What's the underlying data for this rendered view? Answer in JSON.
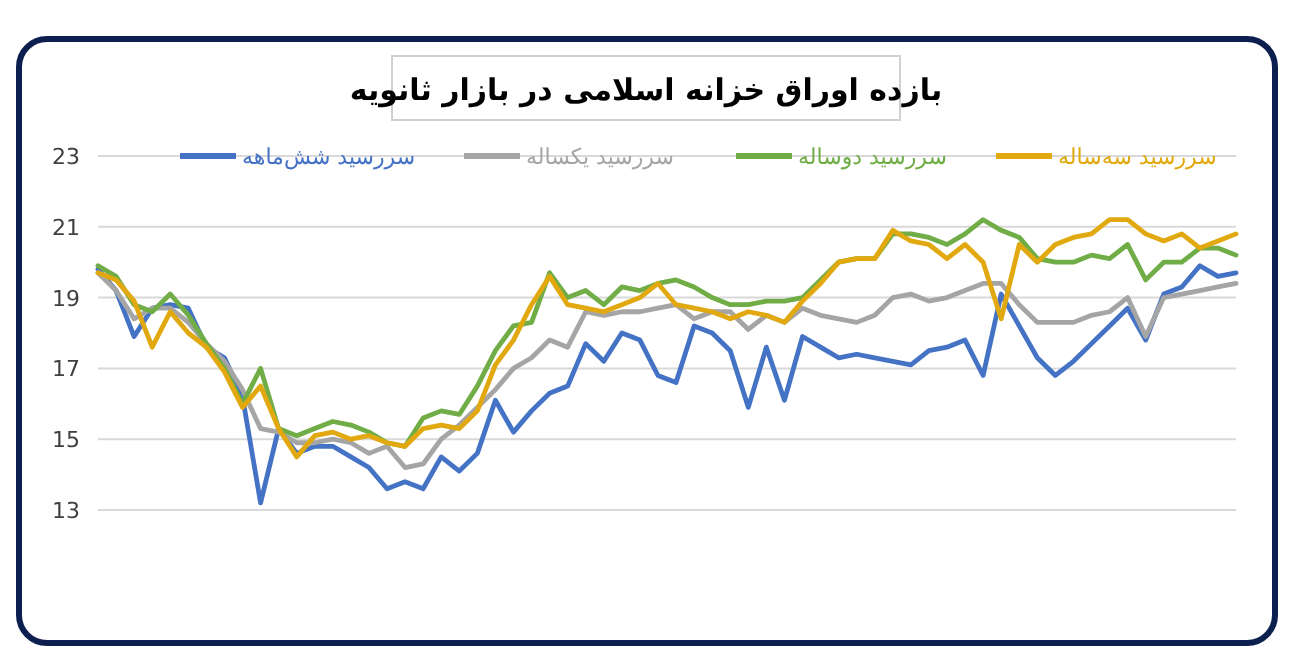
{
  "chart_data": {
    "type": "line",
    "title": "بازده اوراق خزانه اسلامی در بازار ثانویه",
    "categories": [
      null,
      null,
      null,
      null,
      null,
      null,
      null,
      null,
      null,
      null,
      null,
      null,
      null,
      null,
      null,
      null,
      null,
      null,
      null,
      null,
      null,
      null,
      null,
      null,
      null,
      null,
      null,
      null,
      null,
      null,
      null,
      null,
      null,
      null,
      null,
      null,
      null,
      null,
      null,
      null,
      null,
      null,
      null,
      null,
      null,
      null,
      null,
      null,
      null,
      null,
      null,
      null,
      null,
      null,
      null,
      null,
      null,
      null,
      null,
      null,
      null,
      null,
      null,
      null
    ],
    "series": [
      {
        "name": "سررسید شش‌ماهه",
        "color": "#4472c4",
        "values": [
          19.8,
          19.2,
          17.9,
          18.7,
          18.8,
          18.7,
          17.6,
          17.3,
          16.2,
          13.2,
          15.3,
          14.6,
          14.8,
          14.8,
          14.5,
          14.2,
          13.6,
          13.8,
          13.6,
          14.5,
          14.1,
          14.6,
          16.1,
          15.2,
          15.8,
          16.3,
          16.5,
          17.7,
          17.2,
          18.0,
          17.8,
          16.8,
          16.6,
          18.2,
          18.0,
          17.5,
          15.9,
          17.6,
          16.1,
          17.9,
          17.6,
          17.3,
          17.4,
          17.3,
          17.2,
          17.1,
          17.5,
          17.6,
          17.8,
          16.8,
          19.1,
          18.2,
          17.3,
          16.8,
          17.2,
          17.7,
          18.2,
          18.7,
          17.8,
          19.1,
          19.3,
          19.9,
          19.6,
          19.7
        ]
      },
      {
        "name": "سررسید یکساله",
        "color": "#a5a5a5",
        "values": [
          19.7,
          19.2,
          18.4,
          18.7,
          18.7,
          18.3,
          17.7,
          17.2,
          16.4,
          15.3,
          15.2,
          14.9,
          14.9,
          15.0,
          14.9,
          14.6,
          14.8,
          14.2,
          14.3,
          15.0,
          15.4,
          15.9,
          16.4,
          17.0,
          17.3,
          17.8,
          17.6,
          18.6,
          18.5,
          18.6,
          18.6,
          18.7,
          18.8,
          18.4,
          18.6,
          18.6,
          18.1,
          18.5,
          18.3,
          18.7,
          18.5,
          18.4,
          18.3,
          18.5,
          19.0,
          19.1,
          18.9,
          19.0,
          19.2,
          19.4,
          19.4,
          18.8,
          18.3,
          18.3,
          18.3,
          18.5,
          18.6,
          19.0,
          17.9,
          19.0,
          19.1,
          19.2,
          19.3,
          19.4
        ]
      },
      {
        "name": "سررسید دوساله",
        "color": "#70ad47",
        "values": [
          19.9,
          19.6,
          18.8,
          18.6,
          19.1,
          18.5,
          17.7,
          17.0,
          16.0,
          17.0,
          15.3,
          15.1,
          15.3,
          15.5,
          15.4,
          15.2,
          14.9,
          14.8,
          15.6,
          15.8,
          15.7,
          16.5,
          17.5,
          18.2,
          18.3,
          19.7,
          19.0,
          19.2,
          18.8,
          19.3,
          19.2,
          19.4,
          19.5,
          19.3,
          19.0,
          18.8,
          18.8,
          18.9,
          18.9,
          19.0,
          19.5,
          20.0,
          20.1,
          20.1,
          20.8,
          20.8,
          20.7,
          20.5,
          20.8,
          21.2,
          20.9,
          20.7,
          20.1,
          20.0,
          20.0,
          20.2,
          20.1,
          20.5,
          19.5,
          20.0,
          20.0,
          20.4,
          20.4,
          20.2
        ]
      },
      {
        "name": "سررسید سه‌ساله",
        "color": "#e1a90f",
        "values": [
          19.7,
          19.5,
          18.9,
          17.6,
          18.6,
          18.0,
          17.6,
          16.9,
          15.9,
          16.5,
          15.3,
          14.5,
          15.1,
          15.2,
          15.0,
          15.1,
          14.9,
          14.8,
          15.3,
          15.4,
          15.3,
          15.8,
          17.1,
          17.8,
          18.8,
          19.6,
          18.8,
          18.7,
          18.6,
          18.8,
          19.0,
          19.4,
          18.8,
          18.7,
          18.6,
          18.4,
          18.6,
          18.5,
          18.3,
          18.9,
          19.4,
          20.0,
          20.1,
          20.1,
          20.9,
          20.6,
          20.5,
          20.1,
          20.5,
          20.0,
          18.4,
          20.5,
          20.0,
          20.5,
          20.7,
          20.8,
          21.2,
          21.2,
          20.8,
          20.6,
          20.8,
          20.4,
          20.6,
          20.8
        ]
      }
    ],
    "ylim": [
      13,
      23
    ],
    "yticks": [
      13,
      15,
      17,
      19,
      21,
      23
    ],
    "grid": "y",
    "legend": "top",
    "tick_labels": "y",
    "marker": "none",
    "line_style": "solid"
  }
}
